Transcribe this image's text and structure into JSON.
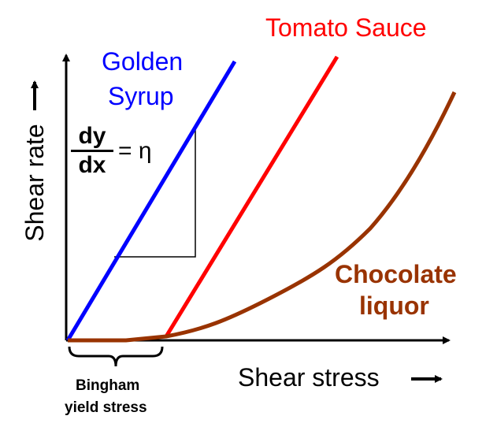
{
  "labels": {
    "golden_line1": "Golden",
    "golden_line2": "Syrup",
    "tomato": "Tomato Sauce",
    "chocolate_line1": "Chocolate",
    "chocolate_line2": "liquor",
    "x_axis": "Shear stress",
    "y_axis": "Shear rate",
    "bingham_line1": "Bingham",
    "bingham_line2": "yield stress"
  },
  "formula": {
    "numerator": "dy",
    "denominator": "dx",
    "equals": "= η"
  },
  "colors": {
    "golden_syrup": "#0000ff",
    "tomato_sauce": "#ff0000",
    "chocolate_liquor": "#993300",
    "axes": "#000000"
  },
  "icons": {
    "x_axis_arrow": "right-arrow-icon",
    "y_axis_arrow": "right-arrow-icon",
    "bingham_brace": "curly-brace-icon"
  }
}
